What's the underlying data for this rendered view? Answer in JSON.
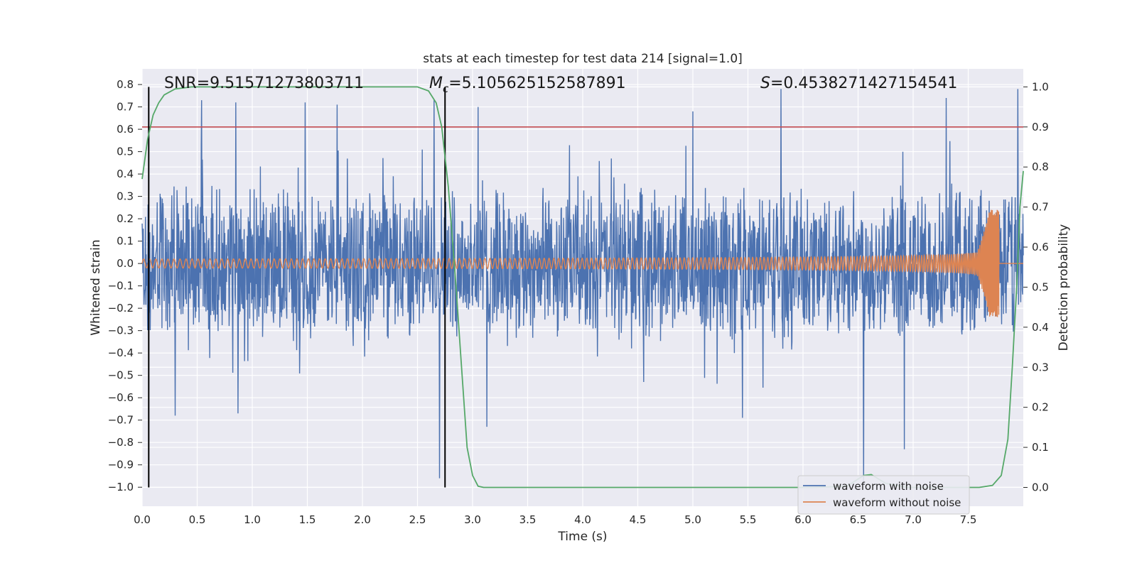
{
  "chart_data": {
    "type": "line",
    "title": "stats at each timestep for test data 214 [signal=1.0]",
    "xlabel": "Time (s)",
    "ylabel": "Whitened strain",
    "ylabel_right": "Detection probability",
    "xlim": [
      0.0,
      8.0
    ],
    "ylim": [
      -1.085,
      0.87
    ],
    "ylim_right": [
      -0.047,
      1.045
    ],
    "x_ticks": [
      "0.0",
      "0.5",
      "1.0",
      "1.5",
      "2.0",
      "2.5",
      "3.0",
      "3.5",
      "4.0",
      "4.5",
      "5.0",
      "5.5",
      "6.0",
      "6.5",
      "7.0",
      "7.5"
    ],
    "x_tick_values": [
      0.0,
      0.5,
      1.0,
      1.5,
      2.0,
      2.5,
      3.0,
      3.5,
      4.0,
      4.5,
      5.0,
      5.5,
      6.0,
      6.5,
      7.0,
      7.5
    ],
    "y_ticks": [
      "0.8",
      "0.7",
      "0.6",
      "0.5",
      "0.4",
      "0.3",
      "0.2",
      "0.1",
      "0.0",
      "−0.1",
      "−0.2",
      "−0.3",
      "−0.4",
      "−0.5",
      "−0.6",
      "−0.7",
      "−0.8",
      "−0.9",
      "−1.0"
    ],
    "y_tick_values": [
      0.8,
      0.7,
      0.6,
      0.5,
      0.4,
      0.3,
      0.2,
      0.1,
      0.0,
      -0.1,
      -0.2,
      -0.3,
      -0.4,
      -0.5,
      -0.6,
      -0.7,
      -0.8,
      -0.9,
      -1.0
    ],
    "y_right_ticks": [
      "1.0",
      "0.9",
      "0.8",
      "0.7",
      "0.6",
      "0.5",
      "0.4",
      "0.3",
      "0.2",
      "0.1",
      "0.0"
    ],
    "y_right_tick_values": [
      1.0,
      0.9,
      0.8,
      0.7,
      0.6,
      0.5,
      0.4,
      0.3,
      0.2,
      0.1,
      0.0
    ],
    "grid": true,
    "legend_position": "bottom-right",
    "annotations": {
      "snr": "SNR=9.51571273803711",
      "mc_symbol": "M",
      "mc_subscript": "c",
      "mc_value": "=5.105625152587891",
      "s_symbol": "S",
      "s_value": "=0.4538271427154541"
    },
    "threshold": {
      "value": 0.9,
      "axis": "right",
      "color": "#c44e52"
    },
    "vertical_markers": [
      0.06,
      2.75
    ],
    "series": [
      {
        "name": "waveform with noise",
        "axis": "left",
        "color": "#4c72b0",
        "x_range": [
          0.0,
          8.0
        ],
        "typical_envelope": [
          -0.3,
          0.3
        ],
        "spikes": [
          [
            0.54,
            0.73
          ],
          [
            0.85,
            0.72
          ],
          [
            1.48,
            0.72
          ],
          [
            1.77,
            0.71
          ],
          [
            2.65,
            0.73
          ],
          [
            3.05,
            0.7
          ],
          [
            5.0,
            0.68
          ],
          [
            5.8,
            0.78
          ],
          [
            7.3,
            0.74
          ],
          [
            7.95,
            0.78
          ],
          [
            0.3,
            -0.68
          ],
          [
            0.87,
            -0.67
          ],
          [
            2.7,
            -0.96
          ],
          [
            3.13,
            -0.73
          ],
          [
            6.55,
            -0.98
          ],
          [
            6.92,
            -0.83
          ],
          [
            5.45,
            -0.69
          ]
        ]
      },
      {
        "name": "waveform without noise",
        "axis": "left",
        "color": "#dd8452",
        "x_range": [
          0.0,
          8.0
        ],
        "amplitude_start": 0.02,
        "amplitude_peak": 0.24,
        "merger_time": 7.78
      },
      {
        "name": "detection probability",
        "axis": "right",
        "color": "#55a868",
        "points": [
          [
            0.0,
            0.77
          ],
          [
            0.05,
            0.87
          ],
          [
            0.1,
            0.93
          ],
          [
            0.15,
            0.96
          ],
          [
            0.2,
            0.98
          ],
          [
            0.3,
            0.995
          ],
          [
            0.45,
            1.0
          ],
          [
            1.0,
            1.0
          ],
          [
            2.0,
            1.0
          ],
          [
            2.5,
            1.0
          ],
          [
            2.6,
            0.99
          ],
          [
            2.67,
            0.96
          ],
          [
            2.72,
            0.9
          ],
          [
            2.78,
            0.75
          ],
          [
            2.85,
            0.5
          ],
          [
            2.9,
            0.3
          ],
          [
            2.95,
            0.1
          ],
          [
            3.0,
            0.03
          ],
          [
            3.05,
            0.003
          ],
          [
            3.1,
            0.0
          ],
          [
            5.0,
            0.0
          ],
          [
            6.1,
            0.0
          ],
          [
            6.4,
            0.003
          ],
          [
            6.55,
            0.03
          ],
          [
            6.62,
            0.032
          ],
          [
            6.75,
            0.01
          ],
          [
            6.95,
            0.0
          ],
          [
            7.2,
            0.0
          ],
          [
            7.6,
            0.0
          ],
          [
            7.72,
            0.005
          ],
          [
            7.8,
            0.03
          ],
          [
            7.86,
            0.12
          ],
          [
            7.9,
            0.3
          ],
          [
            7.94,
            0.5
          ],
          [
            7.97,
            0.7
          ],
          [
            8.0,
            0.79
          ]
        ]
      }
    ]
  }
}
